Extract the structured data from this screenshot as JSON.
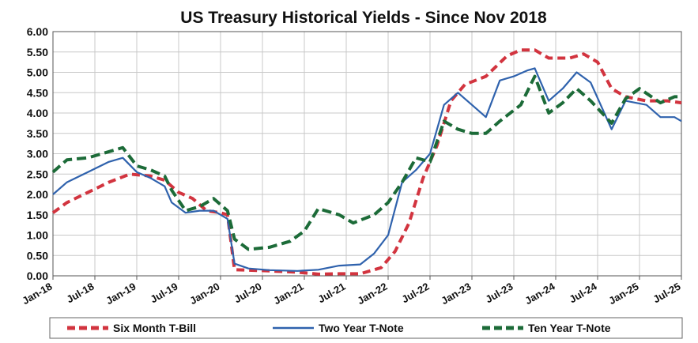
{
  "chart_data": {
    "type": "line",
    "title": "US Treasury Historical Yields - Since Nov 2018",
    "xlabel": "",
    "ylabel": "",
    "ylim": [
      0,
      6
    ],
    "yticks": [
      "0.00",
      "0.50",
      "1.00",
      "1.50",
      "2.00",
      "2.50",
      "3.00",
      "3.50",
      "4.00",
      "4.50",
      "5.00",
      "5.50",
      "6.00"
    ],
    "xlim": [
      "2018-01",
      "2025-07"
    ],
    "xticks": [
      "Jan-18",
      "Jul-18",
      "Jan-19",
      "Jul-19",
      "Jan-20",
      "Jul-20",
      "Jan-21",
      "Jul-21",
      "Jan-22",
      "Jul-22",
      "Jan-23",
      "Jul-23",
      "Jan-24",
      "Jul-24",
      "Jan-25",
      "Jul-25"
    ],
    "grid": true,
    "legend": "bottom",
    "series": [
      {
        "name": "Six Month T-Bill",
        "color": "#d2343f",
        "style": "dashed",
        "points": [
          [
            "2018-01",
            1.55
          ],
          [
            "2018-03",
            1.8
          ],
          [
            "2018-06",
            2.05
          ],
          [
            "2018-09",
            2.3
          ],
          [
            "2018-12",
            2.5
          ],
          [
            "2019-03",
            2.45
          ],
          [
            "2019-05",
            2.35
          ],
          [
            "2019-07",
            2.05
          ],
          [
            "2019-09",
            1.9
          ],
          [
            "2019-11",
            1.6
          ],
          [
            "2020-01",
            1.55
          ],
          [
            "2020-02",
            1.5
          ],
          [
            "2020-03",
            0.15
          ],
          [
            "2020-05",
            0.14
          ],
          [
            "2020-08",
            0.12
          ],
          [
            "2020-12",
            0.09
          ],
          [
            "2021-03",
            0.04
          ],
          [
            "2021-06",
            0.05
          ],
          [
            "2021-09",
            0.05
          ],
          [
            "2021-12",
            0.2
          ],
          [
            "2022-02",
            0.6
          ],
          [
            "2022-04",
            1.3
          ],
          [
            "2022-06",
            2.4
          ],
          [
            "2022-08",
            3.2
          ],
          [
            "2022-10",
            4.3
          ],
          [
            "2022-12",
            4.7
          ],
          [
            "2023-03",
            4.9
          ],
          [
            "2023-06",
            5.4
          ],
          [
            "2023-08",
            5.55
          ],
          [
            "2023-10",
            5.55
          ],
          [
            "2023-12",
            5.35
          ],
          [
            "2024-03",
            5.35
          ],
          [
            "2024-05",
            5.45
          ],
          [
            "2024-07",
            5.25
          ],
          [
            "2024-09",
            4.6
          ],
          [
            "2024-11",
            4.4
          ],
          [
            "2025-02",
            4.3
          ],
          [
            "2025-05",
            4.3
          ],
          [
            "2025-07",
            4.25
          ]
        ]
      },
      {
        "name": "Two Year T-Note",
        "color": "#2f62ad",
        "style": "solid",
        "points": [
          [
            "2018-01",
            2.0
          ],
          [
            "2018-03",
            2.3
          ],
          [
            "2018-06",
            2.55
          ],
          [
            "2018-09",
            2.8
          ],
          [
            "2018-11",
            2.9
          ],
          [
            "2019-01",
            2.55
          ],
          [
            "2019-03",
            2.4
          ],
          [
            "2019-05",
            2.2
          ],
          [
            "2019-06",
            1.8
          ],
          [
            "2019-08",
            1.55
          ],
          [
            "2019-10",
            1.6
          ],
          [
            "2019-12",
            1.6
          ],
          [
            "2020-02",
            1.4
          ],
          [
            "2020-03",
            0.3
          ],
          [
            "2020-05",
            0.18
          ],
          [
            "2020-08",
            0.14
          ],
          [
            "2020-12",
            0.12
          ],
          [
            "2021-03",
            0.15
          ],
          [
            "2021-06",
            0.25
          ],
          [
            "2021-09",
            0.28
          ],
          [
            "2021-11",
            0.55
          ],
          [
            "2022-01",
            1.0
          ],
          [
            "2022-03",
            2.3
          ],
          [
            "2022-05",
            2.6
          ],
          [
            "2022-07",
            3.0
          ],
          [
            "2022-09",
            4.2
          ],
          [
            "2022-11",
            4.5
          ],
          [
            "2023-01",
            4.2
          ],
          [
            "2023-03",
            3.9
          ],
          [
            "2023-05",
            4.8
          ],
          [
            "2023-07",
            4.9
          ],
          [
            "2023-09",
            5.05
          ],
          [
            "2023-10",
            5.1
          ],
          [
            "2023-12",
            4.3
          ],
          [
            "2024-02",
            4.6
          ],
          [
            "2024-04",
            5.0
          ],
          [
            "2024-06",
            4.75
          ],
          [
            "2024-09",
            3.6
          ],
          [
            "2024-11",
            4.3
          ],
          [
            "2025-02",
            4.2
          ],
          [
            "2025-04",
            3.9
          ],
          [
            "2025-06",
            3.9
          ],
          [
            "2025-07",
            3.8
          ]
        ]
      },
      {
        "name": "Ten Year T-Note",
        "color": "#1c6b38",
        "style": "dashed",
        "points": [
          [
            "2018-01",
            2.55
          ],
          [
            "2018-03",
            2.85
          ],
          [
            "2018-06",
            2.9
          ],
          [
            "2018-09",
            3.05
          ],
          [
            "2018-11",
            3.15
          ],
          [
            "2019-01",
            2.7
          ],
          [
            "2019-03",
            2.6
          ],
          [
            "2019-05",
            2.45
          ],
          [
            "2019-06",
            2.1
          ],
          [
            "2019-08",
            1.6
          ],
          [
            "2019-10",
            1.7
          ],
          [
            "2019-12",
            1.9
          ],
          [
            "2020-02",
            1.6
          ],
          [
            "2020-03",
            0.9
          ],
          [
            "2020-05",
            0.65
          ],
          [
            "2020-08",
            0.7
          ],
          [
            "2020-11",
            0.85
          ],
          [
            "2021-01",
            1.1
          ],
          [
            "2021-03",
            1.65
          ],
          [
            "2021-06",
            1.5
          ],
          [
            "2021-08",
            1.3
          ],
          [
            "2021-11",
            1.5
          ],
          [
            "2022-01",
            1.8
          ],
          [
            "2022-03",
            2.3
          ],
          [
            "2022-05",
            2.9
          ],
          [
            "2022-07",
            2.8
          ],
          [
            "2022-09",
            3.8
          ],
          [
            "2022-11",
            3.6
          ],
          [
            "2023-01",
            3.5
          ],
          [
            "2023-03",
            3.5
          ],
          [
            "2023-05",
            3.8
          ],
          [
            "2023-08",
            4.2
          ],
          [
            "2023-10",
            4.9
          ],
          [
            "2023-12",
            4.0
          ],
          [
            "2024-02",
            4.25
          ],
          [
            "2024-04",
            4.6
          ],
          [
            "2024-06",
            4.3
          ],
          [
            "2024-09",
            3.75
          ],
          [
            "2024-11",
            4.35
          ],
          [
            "2025-01",
            4.6
          ],
          [
            "2025-04",
            4.25
          ],
          [
            "2025-06",
            4.4
          ],
          [
            "2025-07",
            4.4
          ]
        ]
      }
    ]
  }
}
